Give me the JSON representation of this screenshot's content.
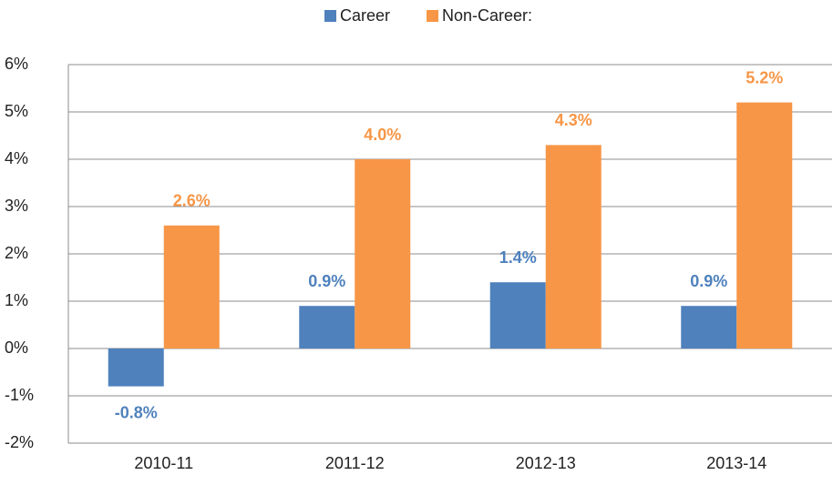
{
  "chart_data": {
    "type": "bar",
    "categories": [
      "2010-11",
      "2011-12",
      "2012-13",
      "2013-14"
    ],
    "series": [
      {
        "name": "Career",
        "color": "#4f81bd",
        "values": [
          -0.8,
          0.9,
          1.4,
          0.9
        ],
        "value_labels": [
          "-0.8%",
          "0.9%",
          "1.4%",
          "0.9%"
        ]
      },
      {
        "name": "Non-Career:",
        "color": "#f79646",
        "values": [
          2.6,
          4.0,
          4.3,
          5.2
        ],
        "value_labels": [
          "2.6%",
          "4.0%",
          "4.3%",
          "5.2%"
        ]
      }
    ],
    "ylim": [
      -2,
      6
    ],
    "yticks": [
      {
        "value": -2,
        "label": "-2%"
      },
      {
        "value": -1,
        "label": "-1%"
      },
      {
        "value": 0,
        "label": "0%"
      },
      {
        "value": 1,
        "label": "1%"
      },
      {
        "value": 2,
        "label": "2%"
      },
      {
        "value": 3,
        "label": "3%"
      },
      {
        "value": 4,
        "label": "4%"
      },
      {
        "value": 5,
        "label": "5%"
      },
      {
        "value": 6,
        "label": "6%"
      }
    ],
    "grid": true,
    "legend": "top"
  }
}
